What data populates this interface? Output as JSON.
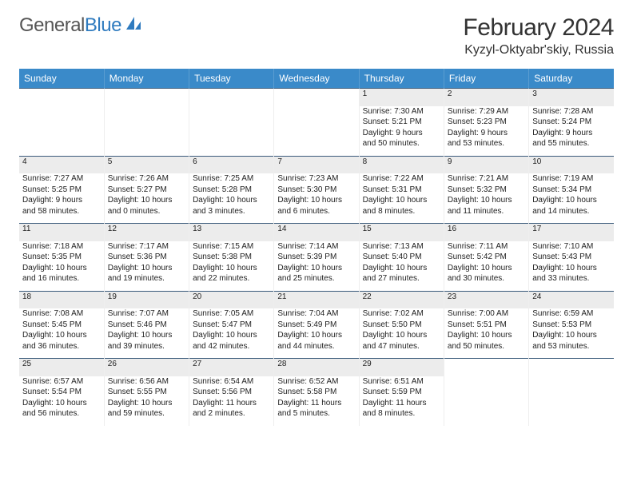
{
  "logo": {
    "word1": "General",
    "word2": "Blue",
    "icon_color": "#2f7bbf"
  },
  "title": "February 2024",
  "location": "Kyzyl-Oktyabr'skiy, Russia",
  "header_bg": "#3a8ac9",
  "daynum_bg": "#ececec",
  "border_color": "#3a5a7a",
  "weekdays": [
    "Sunday",
    "Monday",
    "Tuesday",
    "Wednesday",
    "Thursday",
    "Friday",
    "Saturday"
  ],
  "weeks": [
    {
      "days": [
        null,
        null,
        null,
        null,
        {
          "n": "1",
          "sr": "Sunrise: 7:30 AM",
          "ss": "Sunset: 5:21 PM",
          "dl1": "Daylight: 9 hours",
          "dl2": "and 50 minutes."
        },
        {
          "n": "2",
          "sr": "Sunrise: 7:29 AM",
          "ss": "Sunset: 5:23 PM",
          "dl1": "Daylight: 9 hours",
          "dl2": "and 53 minutes."
        },
        {
          "n": "3",
          "sr": "Sunrise: 7:28 AM",
          "ss": "Sunset: 5:24 PM",
          "dl1": "Daylight: 9 hours",
          "dl2": "and 55 minutes."
        }
      ]
    },
    {
      "days": [
        {
          "n": "4",
          "sr": "Sunrise: 7:27 AM",
          "ss": "Sunset: 5:25 PM",
          "dl1": "Daylight: 9 hours",
          "dl2": "and 58 minutes."
        },
        {
          "n": "5",
          "sr": "Sunrise: 7:26 AM",
          "ss": "Sunset: 5:27 PM",
          "dl1": "Daylight: 10 hours",
          "dl2": "and 0 minutes."
        },
        {
          "n": "6",
          "sr": "Sunrise: 7:25 AM",
          "ss": "Sunset: 5:28 PM",
          "dl1": "Daylight: 10 hours",
          "dl2": "and 3 minutes."
        },
        {
          "n": "7",
          "sr": "Sunrise: 7:23 AM",
          "ss": "Sunset: 5:30 PM",
          "dl1": "Daylight: 10 hours",
          "dl2": "and 6 minutes."
        },
        {
          "n": "8",
          "sr": "Sunrise: 7:22 AM",
          "ss": "Sunset: 5:31 PM",
          "dl1": "Daylight: 10 hours",
          "dl2": "and 8 minutes."
        },
        {
          "n": "9",
          "sr": "Sunrise: 7:21 AM",
          "ss": "Sunset: 5:32 PM",
          "dl1": "Daylight: 10 hours",
          "dl2": "and 11 minutes."
        },
        {
          "n": "10",
          "sr": "Sunrise: 7:19 AM",
          "ss": "Sunset: 5:34 PM",
          "dl1": "Daylight: 10 hours",
          "dl2": "and 14 minutes."
        }
      ]
    },
    {
      "days": [
        {
          "n": "11",
          "sr": "Sunrise: 7:18 AM",
          "ss": "Sunset: 5:35 PM",
          "dl1": "Daylight: 10 hours",
          "dl2": "and 16 minutes."
        },
        {
          "n": "12",
          "sr": "Sunrise: 7:17 AM",
          "ss": "Sunset: 5:36 PM",
          "dl1": "Daylight: 10 hours",
          "dl2": "and 19 minutes."
        },
        {
          "n": "13",
          "sr": "Sunrise: 7:15 AM",
          "ss": "Sunset: 5:38 PM",
          "dl1": "Daylight: 10 hours",
          "dl2": "and 22 minutes."
        },
        {
          "n": "14",
          "sr": "Sunrise: 7:14 AM",
          "ss": "Sunset: 5:39 PM",
          "dl1": "Daylight: 10 hours",
          "dl2": "and 25 minutes."
        },
        {
          "n": "15",
          "sr": "Sunrise: 7:13 AM",
          "ss": "Sunset: 5:40 PM",
          "dl1": "Daylight: 10 hours",
          "dl2": "and 27 minutes."
        },
        {
          "n": "16",
          "sr": "Sunrise: 7:11 AM",
          "ss": "Sunset: 5:42 PM",
          "dl1": "Daylight: 10 hours",
          "dl2": "and 30 minutes."
        },
        {
          "n": "17",
          "sr": "Sunrise: 7:10 AM",
          "ss": "Sunset: 5:43 PM",
          "dl1": "Daylight: 10 hours",
          "dl2": "and 33 minutes."
        }
      ]
    },
    {
      "days": [
        {
          "n": "18",
          "sr": "Sunrise: 7:08 AM",
          "ss": "Sunset: 5:45 PM",
          "dl1": "Daylight: 10 hours",
          "dl2": "and 36 minutes."
        },
        {
          "n": "19",
          "sr": "Sunrise: 7:07 AM",
          "ss": "Sunset: 5:46 PM",
          "dl1": "Daylight: 10 hours",
          "dl2": "and 39 minutes."
        },
        {
          "n": "20",
          "sr": "Sunrise: 7:05 AM",
          "ss": "Sunset: 5:47 PM",
          "dl1": "Daylight: 10 hours",
          "dl2": "and 42 minutes."
        },
        {
          "n": "21",
          "sr": "Sunrise: 7:04 AM",
          "ss": "Sunset: 5:49 PM",
          "dl1": "Daylight: 10 hours",
          "dl2": "and 44 minutes."
        },
        {
          "n": "22",
          "sr": "Sunrise: 7:02 AM",
          "ss": "Sunset: 5:50 PM",
          "dl1": "Daylight: 10 hours",
          "dl2": "and 47 minutes."
        },
        {
          "n": "23",
          "sr": "Sunrise: 7:00 AM",
          "ss": "Sunset: 5:51 PM",
          "dl1": "Daylight: 10 hours",
          "dl2": "and 50 minutes."
        },
        {
          "n": "24",
          "sr": "Sunrise: 6:59 AM",
          "ss": "Sunset: 5:53 PM",
          "dl1": "Daylight: 10 hours",
          "dl2": "and 53 minutes."
        }
      ]
    },
    {
      "days": [
        {
          "n": "25",
          "sr": "Sunrise: 6:57 AM",
          "ss": "Sunset: 5:54 PM",
          "dl1": "Daylight: 10 hours",
          "dl2": "and 56 minutes."
        },
        {
          "n": "26",
          "sr": "Sunrise: 6:56 AM",
          "ss": "Sunset: 5:55 PM",
          "dl1": "Daylight: 10 hours",
          "dl2": "and 59 minutes."
        },
        {
          "n": "27",
          "sr": "Sunrise: 6:54 AM",
          "ss": "Sunset: 5:56 PM",
          "dl1": "Daylight: 11 hours",
          "dl2": "and 2 minutes."
        },
        {
          "n": "28",
          "sr": "Sunrise: 6:52 AM",
          "ss": "Sunset: 5:58 PM",
          "dl1": "Daylight: 11 hours",
          "dl2": "and 5 minutes."
        },
        {
          "n": "29",
          "sr": "Sunrise: 6:51 AM",
          "ss": "Sunset: 5:59 PM",
          "dl1": "Daylight: 11 hours",
          "dl2": "and 8 minutes."
        },
        null,
        null
      ]
    }
  ]
}
